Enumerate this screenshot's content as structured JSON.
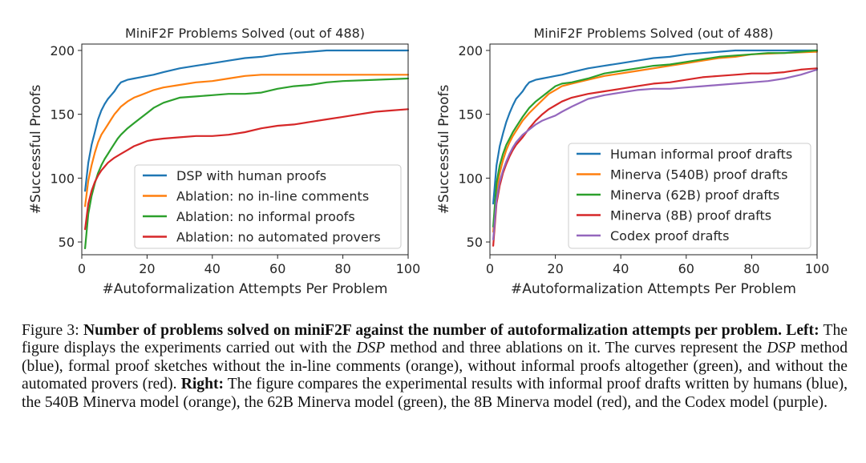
{
  "caption": {
    "lead": "Figure 3:",
    "bold": "Number of problems solved on miniF2F against the number of autoformalization attempts per problem.",
    "left_label": "Left:",
    "left_text_1": "The figure displays the experiments carried out with the",
    "dsp_1": "DSP",
    "left_text_2": "method and three ablations on it. The curves represent the",
    "dsp_2": "DSP",
    "left_text_3": "method (blue), formal proof sketches without the in-line comments (orange), without informal proofs altogether (green), and without the automated provers (red).",
    "right_label": "Right:",
    "right_text": "The figure compares the experimental results with informal proof drafts written by humans (blue), the 540B Minerva model (orange), the 62B Minerva model (green), the 8B Minerva model (red), and the Codex model (purple)."
  },
  "chart_data": [
    {
      "type": "line",
      "title": "MiniF2F Problems Solved (out of 488)",
      "xlabel": "#Autoformalization Attempts Per Problem",
      "ylabel": "#Successful Proofs",
      "xlim": [
        0,
        100
      ],
      "ylim": [
        40,
        205
      ],
      "xticks": [
        0,
        20,
        40,
        60,
        80,
        100
      ],
      "yticks": [
        50,
        100,
        150,
        200
      ],
      "grid": false,
      "legend_loc": "lower-right",
      "series": [
        {
          "name": "DSP with human proofs",
          "color": "#1f77b4",
          "x": [
            1,
            2,
            3,
            4,
            5,
            6,
            7,
            8,
            9,
            10,
            11,
            12,
            14,
            16,
            18,
            20,
            22,
            25,
            30,
            35,
            40,
            45,
            50,
            55,
            60,
            65,
            70,
            75,
            80,
            90,
            100
          ],
          "y": [
            90,
            112,
            126,
            136,
            146,
            153,
            158,
            162,
            165,
            168,
            172,
            175,
            177,
            178,
            179,
            180,
            181,
            183,
            186,
            188,
            190,
            192,
            194,
            195,
            197,
            198,
            199,
            200,
            200,
            200,
            200
          ]
        },
        {
          "name": "Ablation: no in-line comments",
          "color": "#ff7f0e",
          "x": [
            1,
            2,
            3,
            4,
            5,
            6,
            7,
            8,
            9,
            10,
            11,
            12,
            14,
            16,
            18,
            20,
            22,
            25,
            30,
            35,
            40,
            45,
            50,
            55,
            60,
            70,
            80,
            90,
            100
          ],
          "y": [
            78,
            98,
            110,
            120,
            128,
            134,
            138,
            142,
            146,
            150,
            153,
            156,
            160,
            163,
            165,
            167,
            169,
            171,
            173,
            175,
            176,
            178,
            180,
            181,
            181,
            181,
            181,
            181,
            181
          ]
        },
        {
          "name": "Ablation: no informal proofs",
          "color": "#2ca02c",
          "x": [
            1,
            2,
            3,
            4,
            5,
            6,
            7,
            8,
            9,
            10,
            11,
            12,
            14,
            16,
            18,
            20,
            22,
            25,
            30,
            35,
            40,
            45,
            50,
            55,
            60,
            65,
            70,
            75,
            80,
            90,
            100
          ],
          "y": [
            45,
            72,
            86,
            96,
            104,
            110,
            115,
            119,
            123,
            127,
            131,
            134,
            139,
            143,
            147,
            151,
            155,
            159,
            163,
            164,
            165,
            166,
            166,
            167,
            170,
            172,
            173,
            175,
            176,
            177,
            178
          ]
        },
        {
          "name": "Ablation: no automated provers",
          "color": "#d62728",
          "x": [
            1,
            2,
            3,
            4,
            5,
            6,
            7,
            8,
            9,
            10,
            12,
            14,
            16,
            18,
            20,
            22,
            25,
            30,
            35,
            40,
            45,
            50,
            55,
            60,
            65,
            70,
            75,
            80,
            85,
            90,
            95,
            100
          ],
          "y": [
            60,
            80,
            90,
            97,
            102,
            106,
            109,
            112,
            114,
            116,
            119,
            122,
            125,
            127,
            129,
            130,
            131,
            132,
            133,
            133,
            134,
            136,
            139,
            141,
            142,
            144,
            146,
            148,
            150,
            152,
            153,
            154
          ]
        }
      ]
    },
    {
      "type": "line",
      "title": "MiniF2F Problems Solved (out of 488)",
      "xlabel": "#Autoformalization Attempts Per Problem",
      "ylabel": "#Successful Proofs",
      "xlim": [
        0,
        100
      ],
      "ylim": [
        40,
        205
      ],
      "xticks": [
        0,
        20,
        40,
        60,
        80,
        100
      ],
      "yticks": [
        50,
        100,
        150,
        200
      ],
      "grid": false,
      "legend_loc": "lower-right",
      "series": [
        {
          "name": "Human informal proof drafts",
          "color": "#1f77b4",
          "x": [
            1,
            2,
            3,
            4,
            5,
            6,
            7,
            8,
            9,
            10,
            11,
            12,
            14,
            16,
            18,
            20,
            22,
            25,
            30,
            35,
            40,
            45,
            50,
            55,
            60,
            65,
            70,
            75,
            80,
            90,
            100
          ],
          "y": [
            80,
            110,
            125,
            135,
            144,
            151,
            157,
            162,
            165,
            168,
            172,
            175,
            177,
            178,
            179,
            180,
            181,
            183,
            186,
            188,
            190,
            192,
            194,
            195,
            197,
            198,
            199,
            200,
            200,
            200,
            200
          ]
        },
        {
          "name": "Minerva (540B) proof drafts",
          "color": "#ff7f0e",
          "x": [
            1,
            2,
            3,
            4,
            5,
            6,
            7,
            8,
            9,
            10,
            12,
            14,
            16,
            18,
            20,
            22,
            25,
            30,
            35,
            40,
            45,
            50,
            55,
            60,
            65,
            70,
            75,
            80,
            90,
            100
          ],
          "y": [
            58,
            90,
            104,
            114,
            122,
            128,
            133,
            137,
            141,
            145,
            151,
            156,
            161,
            166,
            169,
            172,
            174,
            177,
            180,
            182,
            184,
            186,
            188,
            190,
            192,
            194,
            195,
            197,
            198,
            199
          ]
        },
        {
          "name": "Minerva (62B) proof drafts",
          "color": "#2ca02c",
          "x": [
            1,
            2,
            3,
            4,
            5,
            6,
            7,
            8,
            9,
            10,
            12,
            14,
            16,
            18,
            20,
            22,
            25,
            30,
            35,
            40,
            45,
            50,
            55,
            60,
            65,
            70,
            75,
            80,
            85,
            90,
            95,
            100
          ],
          "y": [
            62,
            96,
            110,
            119,
            126,
            131,
            136,
            140,
            144,
            148,
            155,
            160,
            164,
            168,
            172,
            174,
            175,
            178,
            182,
            184,
            186,
            188,
            189,
            191,
            193,
            195,
            196,
            197,
            198,
            198,
            199,
            200
          ]
        },
        {
          "name": "Minerva (8B) proof drafts",
          "color": "#d62728",
          "x": [
            1,
            2,
            3,
            4,
            5,
            6,
            7,
            8,
            9,
            10,
            12,
            14,
            16,
            18,
            20,
            22,
            25,
            30,
            35,
            40,
            45,
            50,
            55,
            60,
            65,
            70,
            75,
            80,
            85,
            90,
            95,
            100
          ],
          "y": [
            47,
            80,
            94,
            104,
            111,
            117,
            122,
            126,
            129,
            132,
            139,
            145,
            150,
            154,
            157,
            160,
            163,
            166,
            168,
            170,
            172,
            174,
            175,
            177,
            179,
            180,
            181,
            182,
            182,
            183,
            185,
            186
          ]
        },
        {
          "name": "Codex proof drafts",
          "color": "#9467bd",
          "x": [
            1,
            2,
            3,
            4,
            5,
            6,
            7,
            8,
            9,
            10,
            12,
            14,
            16,
            18,
            20,
            22,
            25,
            30,
            35,
            40,
            45,
            50,
            55,
            60,
            65,
            70,
            75,
            80,
            85,
            90,
            95,
            100
          ],
          "y": [
            52,
            83,
            97,
            106,
            113,
            119,
            124,
            128,
            131,
            134,
            138,
            142,
            145,
            147,
            149,
            152,
            156,
            162,
            165,
            167,
            169,
            170,
            170,
            171,
            172,
            173,
            174,
            175,
            176,
            178,
            181,
            185
          ]
        }
      ]
    }
  ]
}
